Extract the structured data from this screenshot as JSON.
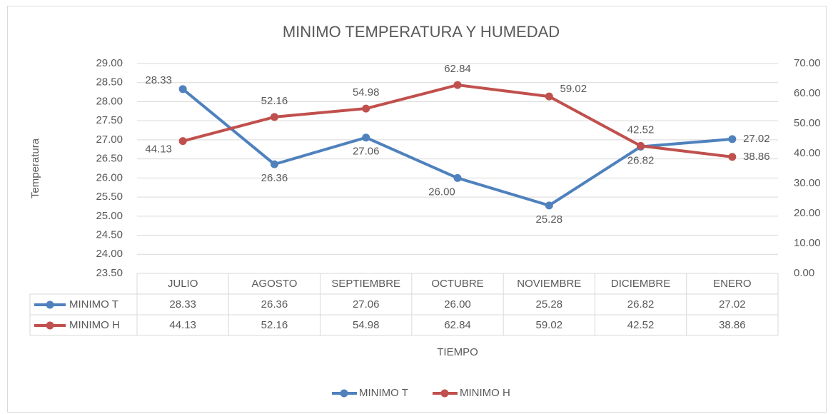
{
  "chart_data": {
    "type": "line",
    "title": "MINIMO TEMPERATURA Y HUMEDAD",
    "y_label": "Temperatura",
    "x_label": "TIEMPO",
    "categories": [
      "JULIO",
      "AGOSTO",
      "SEPTIEMBRE",
      "OCTUBRE",
      "NOVIEMBRE",
      "DICIEMBRE",
      "ENERO"
    ],
    "series": [
      {
        "name": "MINIMO T",
        "color": "#4f81bd",
        "values": [
          28.33,
          26.36,
          27.06,
          26.0,
          25.28,
          26.82,
          27.02
        ],
        "value_labels": [
          "28.33",
          "26.36",
          "27.06",
          "26.00",
          "25.28",
          "26.82",
          "27.02"
        ]
      },
      {
        "name": "MINIMO H",
        "color": "#c0504d",
        "axis": "y2",
        "values": [
          44.13,
          52.16,
          54.98,
          62.84,
          59.02,
          42.52,
          38.86
        ],
        "value_labels": [
          "44.13",
          "52.16",
          "54.98",
          "62.84",
          "59.02",
          "42.52",
          "38.86"
        ]
      }
    ],
    "ylim": [
      23.5,
      29
    ],
    "yticks": [
      {
        "value": 23.5,
        "label": "23.50"
      },
      {
        "value": 24,
        "label": "24.00"
      },
      {
        "value": 24.5,
        "label": "24.50"
      },
      {
        "value": 25,
        "label": "25.00"
      },
      {
        "value": 25.5,
        "label": "25.50"
      },
      {
        "value": 26,
        "label": "26.00"
      },
      {
        "value": 26.5,
        "label": "26.50"
      },
      {
        "value": 27,
        "label": "27.00"
      },
      {
        "value": 27.5,
        "label": "27.50"
      },
      {
        "value": 28,
        "label": "28.00"
      },
      {
        "value": 28.5,
        "label": "28.50"
      },
      {
        "value": 29,
        "label": "29.00"
      }
    ],
    "y2lim": [
      0,
      70
    ],
    "y2ticks": [
      {
        "value": 0,
        "label": "0.00"
      },
      {
        "value": 10,
        "label": "10.00"
      },
      {
        "value": 20,
        "label": "20.00"
      },
      {
        "value": 30,
        "label": "30.00"
      },
      {
        "value": 40,
        "label": "40.00"
      },
      {
        "value": 50,
        "label": "50.00"
      },
      {
        "value": 60,
        "label": "60.00"
      },
      {
        "value": 70,
        "label": "70.00"
      }
    ],
    "grid": true,
    "legend": "bottom"
  }
}
